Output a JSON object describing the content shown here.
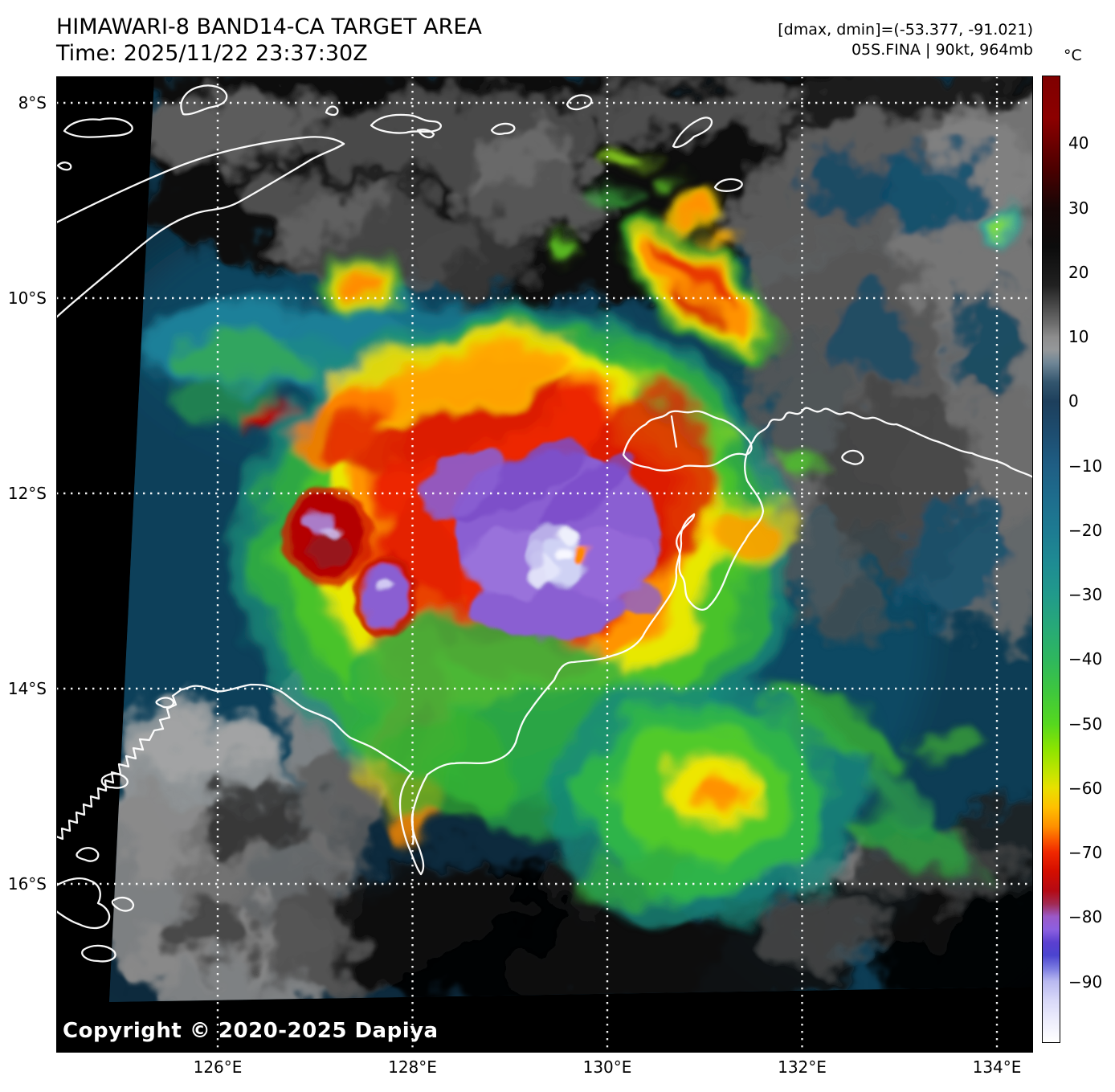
{
  "header": {
    "title": "HIMAWARI-8 BAND14-CA TARGET AREA",
    "time": "Time: 2025/11/22 23:37:30Z",
    "dmax_dmin": "[dmax, dmin]=(-53.377, -91.021)",
    "storm_info": "05S.FINA | 90kt, 964mb"
  },
  "footer": {
    "copyright": "Copyright © 2020-2025 Dapiya"
  },
  "axes": {
    "lat_ticks": [
      {
        "label": "8°S",
        "value": 8
      },
      {
        "label": "10°S",
        "value": 10
      },
      {
        "label": "12°S",
        "value": 12
      },
      {
        "label": "14°S",
        "value": 14
      },
      {
        "label": "16°S",
        "value": 16
      }
    ],
    "lon_ticks": [
      {
        "label": "126°E",
        "value": 126
      },
      {
        "label": "128°E",
        "value": 128
      },
      {
        "label": "130°E",
        "value": 130
      },
      {
        "label": "132°E",
        "value": 132
      },
      {
        "label": "134°E",
        "value": 134
      }
    ]
  },
  "colorbar": {
    "unit": "°C",
    "vmax": 50.5,
    "vmin": -99.5,
    "ticks": [
      {
        "label": "40",
        "value": 40
      },
      {
        "label": "30",
        "value": 30
      },
      {
        "label": "20",
        "value": 20
      },
      {
        "label": "10",
        "value": 10
      },
      {
        "label": "0",
        "value": 0
      },
      {
        "label": "−10",
        "value": -10
      },
      {
        "label": "−20",
        "value": -20
      },
      {
        "label": "−30",
        "value": -30
      },
      {
        "label": "−40",
        "value": -40
      },
      {
        "label": "−50",
        "value": -50
      },
      {
        "label": "−60",
        "value": -60
      },
      {
        "label": "−70",
        "value": -70
      },
      {
        "label": "−80",
        "value": -80
      },
      {
        "label": "−90",
        "value": -90
      }
    ],
    "stops": [
      {
        "value": 50.5,
        "color": "#7f0000"
      },
      {
        "value": 44,
        "color": "#8c0000"
      },
      {
        "value": 36,
        "color": "#4a0000"
      },
      {
        "value": 30,
        "color": "#170606"
      },
      {
        "value": 24,
        "color": "#0c0c0c"
      },
      {
        "value": 18,
        "color": "#212121"
      },
      {
        "value": 12,
        "color": "#6e6e6e"
      },
      {
        "value": 10,
        "color": "#8d8d8d"
      },
      {
        "value": 8,
        "color": "#95989a"
      },
      {
        "value": 6,
        "color": "#6f8696"
      },
      {
        "value": 3,
        "color": "#33566e"
      },
      {
        "value": 0,
        "color": "#1d3f5c"
      },
      {
        "value": -5,
        "color": "#1d4d70"
      },
      {
        "value": -10,
        "color": "#1f5e84"
      },
      {
        "value": -15,
        "color": "#1e6d8d"
      },
      {
        "value": -20,
        "color": "#1d7b92"
      },
      {
        "value": -25,
        "color": "#1e8b93"
      },
      {
        "value": -30,
        "color": "#219a8b"
      },
      {
        "value": -35,
        "color": "#27a978"
      },
      {
        "value": -40,
        "color": "#2eb75e"
      },
      {
        "value": -45,
        "color": "#3ec73e"
      },
      {
        "value": -50,
        "color": "#55d81f"
      },
      {
        "value": -54,
        "color": "#8ce400"
      },
      {
        "value": -58,
        "color": "#c8e400"
      },
      {
        "value": -60,
        "color": "#e8e000"
      },
      {
        "value": -63,
        "color": "#ffc000"
      },
      {
        "value": -66,
        "color": "#ff9000"
      },
      {
        "value": -68,
        "color": "#fb5a00"
      },
      {
        "value": -70,
        "color": "#f02800"
      },
      {
        "value": -73,
        "color": "#d40e00"
      },
      {
        "value": -76,
        "color": "#b40a14"
      },
      {
        "value": -78,
        "color": "#a12a52"
      },
      {
        "value": -80,
        "color": "#9b59c8"
      },
      {
        "value": -82,
        "color": "#8c5fe0"
      },
      {
        "value": -84,
        "color": "#5b3fd0"
      },
      {
        "value": -86,
        "color": "#4b44cf"
      },
      {
        "value": -88,
        "color": "#7a7ae0"
      },
      {
        "value": -90,
        "color": "#b8b8f0"
      },
      {
        "value": -93,
        "color": "#d8d8f8"
      },
      {
        "value": -96,
        "color": "#ecECfc"
      },
      {
        "value": -99.5,
        "color": "#ffffff"
      }
    ]
  }
}
